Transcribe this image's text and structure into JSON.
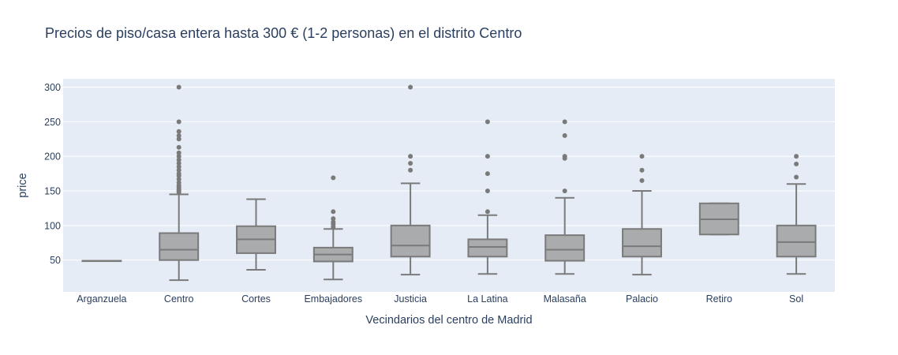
{
  "chart_data": {
    "type": "box",
    "title": "Precios de piso/casa entera hasta 300 € (1-2 personas) en el distrito Centro",
    "xlabel": "Vecindarios del centro de Madrid",
    "ylabel": "price",
    "ylim": [
      4,
      312
    ],
    "yticks": [
      50,
      100,
      150,
      200,
      250,
      300
    ],
    "grid": true,
    "colors": {
      "plot_bg": "#e5ecf6",
      "box_fill": "#a9abad",
      "box_line": "#7a7a7a",
      "grid": "#ffffff",
      "text": "#2a3f5f"
    },
    "categories": [
      "Arganzuela",
      "Centro",
      "Cortes",
      "Embajadores",
      "Justicia",
      "La Latina",
      "Malasaña",
      "Palacio",
      "Retiro",
      "Sol"
    ],
    "boxes": [
      {
        "category": "Arganzuela",
        "min": 49,
        "q1": 49,
        "median": 49,
        "q3": 49,
        "max": 49,
        "outliers": []
      },
      {
        "category": "Centro",
        "min": 21,
        "q1": 50,
        "median": 65,
        "q3": 89,
        "max": 145,
        "outliers": [
          148,
          150,
          152,
          155,
          158,
          162,
          167,
          172,
          175,
          180,
          185,
          190,
          195,
          200,
          205,
          213,
          225,
          230,
          236,
          250,
          300
        ]
      },
      {
        "category": "Cortes",
        "min": 36,
        "q1": 60,
        "median": 80,
        "q3": 99,
        "max": 138,
        "outliers": []
      },
      {
        "category": "Embajadores",
        "min": 22,
        "q1": 48,
        "median": 58,
        "q3": 68,
        "max": 95,
        "outliers": [
          98,
          102,
          105,
          110,
          120,
          169
        ]
      },
      {
        "category": "Justicia",
        "min": 29,
        "q1": 55,
        "median": 71,
        "q3": 100,
        "max": 161,
        "outliers": [
          180,
          190,
          200,
          300
        ]
      },
      {
        "category": "La Latina",
        "min": 30,
        "q1": 55,
        "median": 69,
        "q3": 80,
        "max": 115,
        "outliers": [
          120,
          150,
          175,
          200,
          250
        ]
      },
      {
        "category": "Malasaña",
        "min": 30,
        "q1": 49,
        "median": 65,
        "q3": 86,
        "max": 140,
        "outliers": [
          150,
          197,
          200,
          230,
          250
        ]
      },
      {
        "category": "Palacio",
        "min": 29,
        "q1": 55,
        "median": 70,
        "q3": 95,
        "max": 150,
        "outliers": [
          165,
          180,
          200
        ]
      },
      {
        "category": "Retiro",
        "min": 87,
        "q1": 87,
        "median": 109,
        "q3": 132,
        "max": 132,
        "outliers": []
      },
      {
        "category": "Sol",
        "min": 30,
        "q1": 55,
        "median": 76,
        "q3": 100,
        "max": 160,
        "outliers": [
          170,
          189,
          200
        ]
      }
    ]
  }
}
